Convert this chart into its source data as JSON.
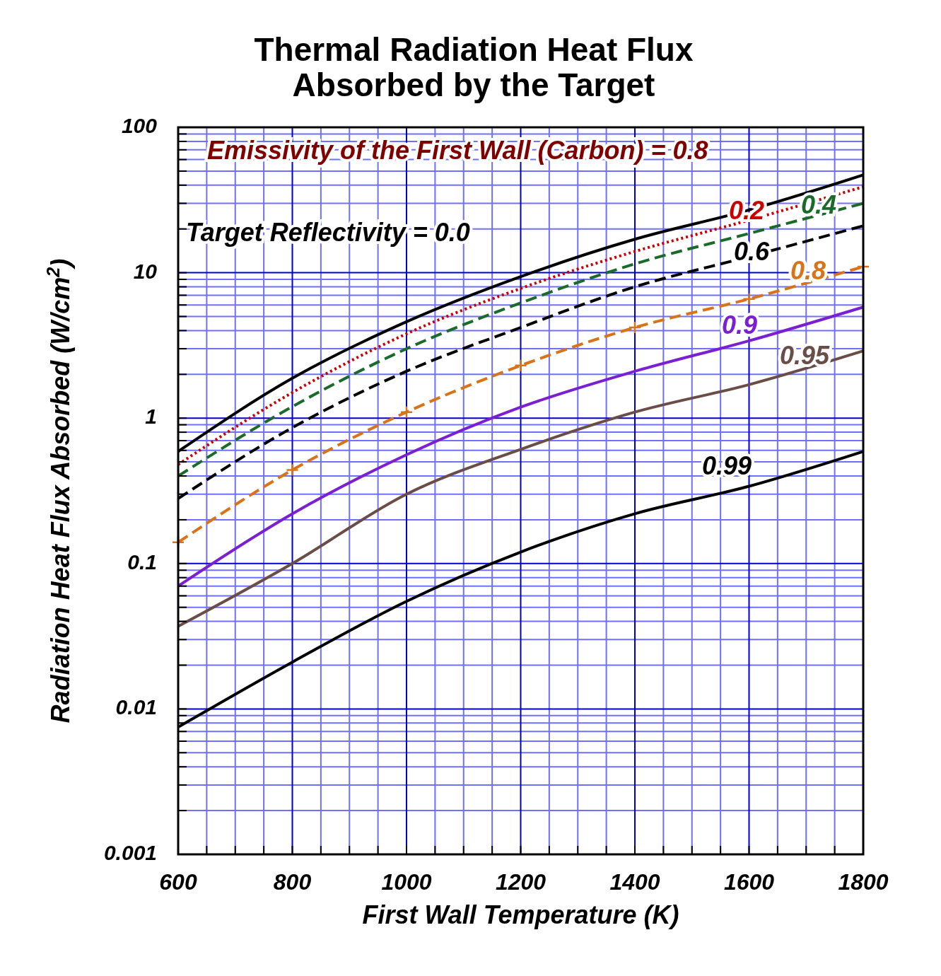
{
  "chart_data": {
    "type": "line",
    "title": "Thermal Radiation Heat Flux\nAbsorbed by the Target",
    "xlabel": "First Wall Temperature (K)",
    "ylabel": "Radiation Heat Flux Absorbed (W/cm$^{2}$)",
    "annotations": [
      "Emissivity of the First Wall (Carbon) = 0.8"
    ],
    "x": [
      600,
      800,
      1000,
      1200,
      1400,
      1600,
      1800
    ],
    "xlim": [
      600,
      1800
    ],
    "xticks": [
      600,
      {
        "value": 650,
        "label": null
      },
      {
        "value": 700,
        "label": null
      },
      {
        "value": 750,
        "label": null
      },
      800,
      {
        "value": 850,
        "label": null
      },
      {
        "value": 900,
        "label": null
      },
      {
        "value": 950,
        "label": null
      },
      1000,
      {
        "value": 1050,
        "label": null
      },
      {
        "value": 1100,
        "label": null
      },
      {
        "value": 1150,
        "label": null
      },
      1200,
      {
        "value": 1250,
        "label": null
      },
      {
        "value": 1300,
        "label": null
      },
      {
        "value": 1350,
        "label": null
      },
      1400,
      {
        "value": 1450,
        "label": null
      },
      {
        "value": 1500,
        "label": null
      },
      {
        "value": 1550,
        "label": null
      },
      1600,
      {
        "value": 1650,
        "label": null
      },
      {
        "value": 1700,
        "label": null
      },
      {
        "value": 1750,
        "label": null
      },
      1800
    ],
    "ylim": [
      0.001,
      100
    ],
    "yticks": [
      0.001,
      {
        "value": 0.002,
        "label": null
      },
      {
        "value": 0.003,
        "label": null
      },
      {
        "value": 0.004,
        "label": null
      },
      {
        "value": 0.005,
        "label": null
      },
      {
        "value": 0.006,
        "label": null
      },
      {
        "value": 0.007,
        "label": null
      },
      {
        "value": 0.008,
        "label": null
      },
      {
        "value": 0.009,
        "label": null
      },
      0.01,
      {
        "value": 0.02,
        "label": null
      },
      {
        "value": 0.03,
        "label": null
      },
      {
        "value": 0.04,
        "label": null
      },
      {
        "value": 0.05,
        "label": null
      },
      {
        "value": 0.06,
        "label": null
      },
      {
        "value": 0.07,
        "label": null
      },
      {
        "value": 0.08,
        "label": null
      },
      {
        "value": 0.09,
        "label": null
      },
      0.1,
      {
        "value": 0.2,
        "label": null
      },
      {
        "value": 0.3,
        "label": null
      },
      {
        "value": 0.4,
        "label": null
      },
      {
        "value": 0.5,
        "label": null
      },
      {
        "value": 0.6,
        "label": null
      },
      {
        "value": 0.7,
        "label": null
      },
      {
        "value": 0.8,
        "label": null
      },
      {
        "value": 0.9,
        "label": null
      },
      1,
      {
        "value": 2,
        "label": null
      },
      {
        "value": 3,
        "label": null
      },
      {
        "value": 4,
        "label": null
      },
      {
        "value": 5,
        "label": null
      },
      {
        "value": 6,
        "label": null
      },
      {
        "value": 7,
        "label": null
      },
      {
        "value": 8,
        "label": null
      },
      {
        "value": 9,
        "label": null
      },
      10,
      {
        "value": 20,
        "label": null
      },
      {
        "value": 30,
        "label": null
      },
      {
        "value": 40,
        "label": null
      },
      {
        "value": 50,
        "label": null
      },
      {
        "value": 60,
        "label": null
      },
      {
        "value": 70,
        "label": null
      },
      {
        "value": 80,
        "label": null
      },
      {
        "value": 90,
        "label": null
      },
      100
    ],
    "log": "y",
    "grid": true,
    "legend": false,
    "series": [
      {
        "name": "Target Reflectivity = 0.0",
        "color": "#000000",
        "line_style": "solid",
        "values": [
          0.59,
          1.88,
          4.6,
          9.4,
          17,
          27,
          47
        ]
      },
      {
        "name": "0.2",
        "color": "#cc0000",
        "line_style": "dotted",
        "values": [
          0.48,
          1.5,
          3.8,
          7.8,
          14,
          23,
          39
        ]
      },
      {
        "name": "0.4",
        "color": "#1a6b2a",
        "line_style": "dashed",
        "values": [
          0.4,
          1.2,
          3.0,
          6.2,
          11.5,
          18.6,
          30
        ]
      },
      {
        "name": "0.6",
        "color": "#000000",
        "line_style": "dashed",
        "values": [
          0.28,
          0.86,
          2.1,
          4.2,
          8.0,
          12.9,
          21
        ]
      },
      {
        "name": "0.8",
        "color": "#d9731a",
        "line_style": "dashed",
        "marker": "cross",
        "values": [
          0.14,
          0.44,
          1.1,
          2.3,
          4.2,
          6.6,
          11
        ]
      },
      {
        "name": "0.9",
        "color": "#7a1fd1",
        "line_style": "solid",
        "values": [
          0.07,
          0.22,
          0.56,
          1.19,
          2.1,
          3.4,
          5.8
        ]
      },
      {
        "name": "0.95",
        "color": "#6b4d47",
        "line_style": "solid",
        "values": [
          0.037,
          0.1,
          0.3,
          0.61,
          1.1,
          1.7,
          2.9
        ]
      },
      {
        "name": "0.99",
        "color": "#000000",
        "line_style": "solid",
        "values": [
          0.0075,
          0.021,
          0.055,
          0.12,
          0.22,
          0.34,
          0.59
        ]
      }
    ]
  }
}
